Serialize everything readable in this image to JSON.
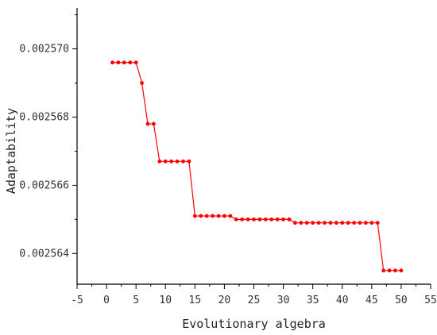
{
  "chart_data": {
    "type": "line",
    "title": "",
    "xlabel": "Evolutionary algebra",
    "ylabel": "Adaptability",
    "xlim": [
      -5,
      55
    ],
    "ylim": [
      0.0025631,
      0.0025712
    ],
    "x_ticks": [
      -5,
      0,
      5,
      10,
      15,
      20,
      25,
      30,
      35,
      40,
      45,
      50,
      55
    ],
    "x_tick_labels": [
      "-5",
      "0",
      "5",
      "10",
      "15",
      "20",
      "25",
      "30",
      "35",
      "40",
      "45",
      "50",
      "55"
    ],
    "y_ticks": [
      0.002564,
      0.002566,
      0.002568,
      0.00257
    ],
    "y_tick_labels": [
      "0.002564",
      "0.002566",
      "0.002568",
      "0.002570"
    ],
    "grid": false,
    "colors": {
      "series": "#ff0000",
      "axis": "#000000"
    },
    "series": [
      {
        "name": "",
        "x": [
          1,
          2,
          3,
          4,
          5,
          6,
          7,
          8,
          9,
          10,
          11,
          12,
          13,
          14,
          15,
          16,
          17,
          18,
          19,
          20,
          21,
          22,
          23,
          24,
          25,
          26,
          27,
          28,
          29,
          30,
          31,
          32,
          33,
          34,
          35,
          36,
          37,
          38,
          39,
          40,
          41,
          42,
          43,
          44,
          45,
          46,
          47,
          48,
          49,
          50
        ],
        "y": [
          0.0025696,
          0.0025696,
          0.0025696,
          0.0025696,
          0.0025696,
          0.002569,
          0.0025678,
          0.0025678,
          0.0025667,
          0.0025667,
          0.0025667,
          0.0025667,
          0.0025667,
          0.0025667,
          0.0025651,
          0.0025651,
          0.0025651,
          0.0025651,
          0.0025651,
          0.0025651,
          0.0025651,
          0.002565,
          0.002565,
          0.002565,
          0.002565,
          0.002565,
          0.002565,
          0.002565,
          0.002565,
          0.002565,
          0.002565,
          0.0025649,
          0.0025649,
          0.0025649,
          0.0025649,
          0.0025649,
          0.0025649,
          0.0025649,
          0.0025649,
          0.0025649,
          0.0025649,
          0.0025649,
          0.0025649,
          0.0025649,
          0.0025649,
          0.0025649,
          0.0025635,
          0.0025635,
          0.0025635,
          0.0025635
        ]
      }
    ]
  }
}
